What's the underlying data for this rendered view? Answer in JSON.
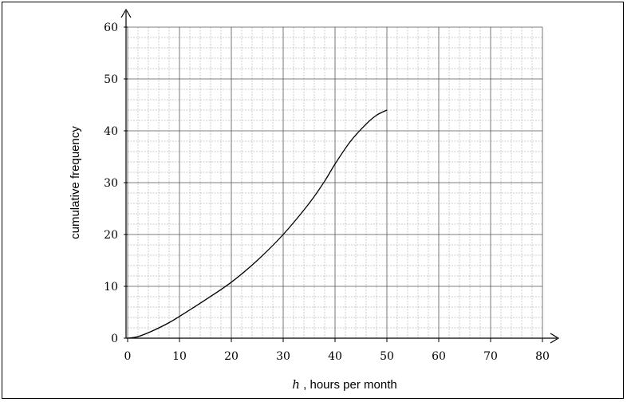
{
  "chart_data": {
    "type": "line",
    "title": "",
    "xlabel_var": "h",
    "xlabel_text": " , hours per month",
    "ylabel": "cumulative frequency",
    "xlim": [
      0,
      80
    ],
    "ylim": [
      0,
      60
    ],
    "x_ticks": [
      "0",
      "10",
      "20",
      "30",
      "40",
      "50",
      "60",
      "70",
      "80"
    ],
    "y_ticks": [
      "0",
      "10",
      "20",
      "30",
      "40",
      "50",
      "60"
    ],
    "grid": true,
    "series": [
      {
        "x": [
          0,
          2,
          5,
          8,
          10,
          15,
          20,
          25,
          30,
          35,
          38,
          40,
          43,
          46,
          48,
          50
        ],
        "y": [
          0,
          0.3,
          1.5,
          3.0,
          4.2,
          7.4,
          10.8,
          15.0,
          20.0,
          26.0,
          30.3,
          33.6,
          38.0,
          41.3,
          43.0,
          44.0
        ]
      }
    ]
  }
}
